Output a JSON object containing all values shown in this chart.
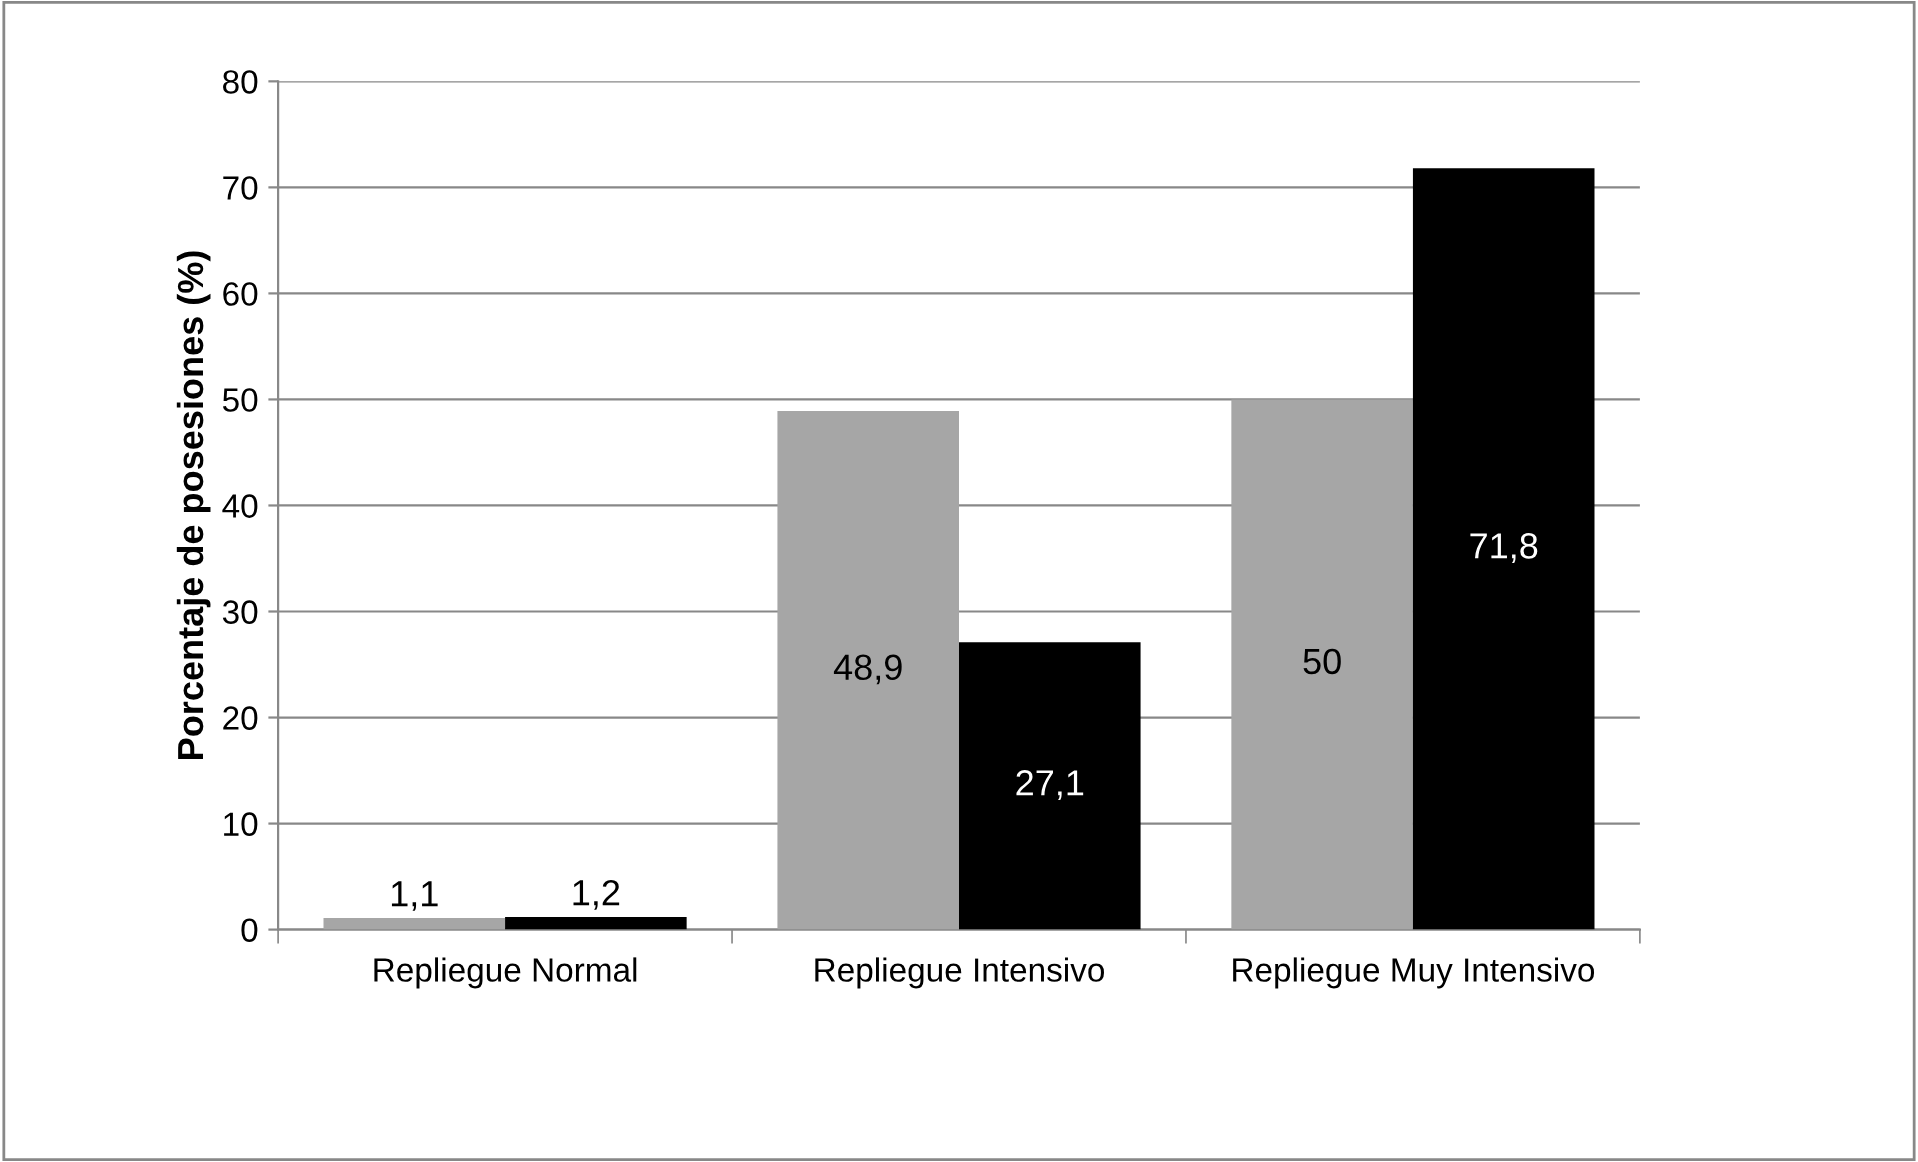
{
  "chart_data": {
    "type": "bar",
    "ylabel": "Porcentaje de posesiones (%)",
    "categories": [
      "Repliegue Normal",
      "Repliegue Intensivo",
      "Repliegue Muy Intensivo"
    ],
    "series": [
      {
        "color": "#a6a6a6",
        "values": [
          1.1,
          48.9,
          50
        ],
        "value_labels": [
          "1,1",
          "48,9",
          "50"
        ]
      },
      {
        "color": "#000000",
        "values": [
          1.2,
          27.1,
          71.8
        ],
        "value_labels": [
          "1,2",
          "27,1",
          "71,8"
        ]
      }
    ],
    "ylim": [
      0,
      80
    ],
    "yticks": [
      0,
      10,
      20,
      30,
      40,
      50,
      60,
      70,
      80
    ],
    "grid": "y"
  }
}
